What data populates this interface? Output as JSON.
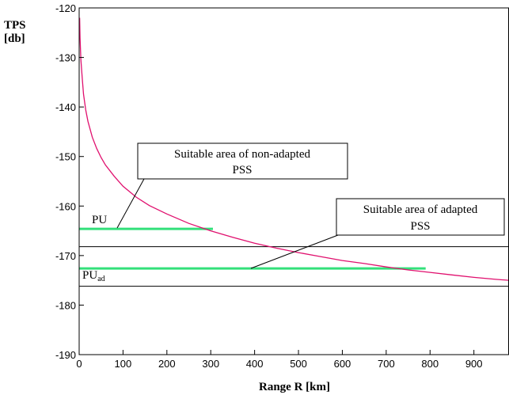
{
  "chart_data": {
    "type": "line",
    "title": "",
    "ylabel_line1": "TPS",
    "ylabel_line2": "[db]",
    "xlabel": "Range R [km]",
    "xlim": [
      0,
      980
    ],
    "ylim": [
      -190,
      -120
    ],
    "x_ticks": [
      0,
      100,
      200,
      300,
      400,
      500,
      600,
      700,
      800,
      900
    ],
    "y_ticks": [
      -120,
      -130,
      -140,
      -150,
      -160,
      -170,
      -180,
      -190
    ],
    "grid": false,
    "series": [
      {
        "color": "#e0106e",
        "x": [
          1,
          2,
          4,
          7,
          10,
          15,
          20,
          30,
          40,
          50,
          60,
          80,
          100,
          130,
          160,
          200,
          250,
          300,
          350,
          400,
          450,
          500,
          550,
          600,
          650,
          700,
          750,
          800,
          850,
          900,
          950,
          980
        ],
        "y": [
          -122.0,
          -126.0,
          -130.5,
          -134.2,
          -137.4,
          -140.6,
          -142.9,
          -146.1,
          -148.4,
          -150.2,
          -151.7,
          -154.0,
          -156.0,
          -158.2,
          -159.9,
          -161.6,
          -163.5,
          -165.0,
          -166.3,
          -167.5,
          -168.5,
          -169.4,
          -170.2,
          -171.0,
          -171.6,
          -172.3,
          -172.9,
          -173.4,
          -173.9,
          -174.4,
          -174.8,
          -175.0
        ]
      }
    ],
    "reference_lines": [
      {
        "y": -168.2,
        "color": "#000000"
      },
      {
        "y": -176.2,
        "color": "#000000"
      }
    ],
    "segments": [
      {
        "label": "PU",
        "y": -164.6,
        "x_start": 0,
        "x_end": 305,
        "color": "#33e07a"
      },
      {
        "label": "PU",
        "label_sub": "ad",
        "y": -172.6,
        "x_start": 0,
        "x_end": 790,
        "color": "#33e07a"
      }
    ],
    "annotations": [
      {
        "line1": "Suitable area of non-adapted",
        "line2": "PSS",
        "pointer_from_x": 80,
        "pointer_from_y": -164.6
      },
      {
        "line1": "Suitable area of adapted",
        "line2": "PSS",
        "pointer_from_x": 380,
        "pointer_from_y": -172.6
      }
    ]
  }
}
